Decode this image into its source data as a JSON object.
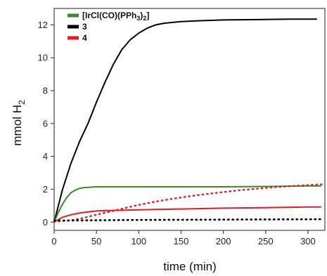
{
  "chart_data": {
    "type": "line",
    "title": "",
    "xlabel": "time (min)",
    "ylabel": "mmol H",
    "ylabel_sub": "2",
    "xlim": [
      0,
      320
    ],
    "ylim": [
      -0.5,
      13
    ],
    "xticks": [
      0,
      50,
      100,
      150,
      200,
      250,
      300
    ],
    "yticks": [
      0,
      2,
      4,
      6,
      8,
      10,
      12
    ],
    "grid": false,
    "legend_position": "top-left",
    "legend": [
      {
        "label_main": "[IrCl(CO)(PPh",
        "label_sub": "3",
        "label_end": ")",
        "label_sub2": "2",
        "label_close": "]",
        "color": "#3a8a2a"
      },
      {
        "label_main": "3",
        "color": "#000000"
      },
      {
        "label_main": "4",
        "color": "#e8191c"
      }
    ],
    "series": [
      {
        "color": "#000000",
        "style": "solid",
        "x": [
          0,
          10,
          20,
          30,
          40,
          50,
          60,
          70,
          80,
          90,
          95,
          100,
          110,
          120,
          130,
          140,
          150,
          170,
          200,
          250,
          280,
          310
        ],
        "y": [
          0,
          2.0,
          3.6,
          4.9,
          6.0,
          7.3,
          8.5,
          9.6,
          10.5,
          11.1,
          11.3,
          11.5,
          11.8,
          12.0,
          12.1,
          12.15,
          12.2,
          12.25,
          12.3,
          12.33,
          12.35,
          12.35
        ]
      },
      {
        "color": "#3a8a2a",
        "style": "solid",
        "x": [
          0,
          5,
          10,
          15,
          20,
          25,
          30,
          35,
          40,
          50,
          60,
          80,
          100,
          150,
          200,
          250,
          300,
          315
        ],
        "y": [
          0,
          0.6,
          1.1,
          1.5,
          1.8,
          1.95,
          2.05,
          2.1,
          2.12,
          2.15,
          2.15,
          2.15,
          2.15,
          2.15,
          2.15,
          2.17,
          2.2,
          2.2
        ]
      },
      {
        "color": "#e8191c",
        "style": "solid",
        "x": [
          0,
          10,
          20,
          30,
          40,
          50,
          60,
          80,
          100,
          150,
          200,
          250,
          300,
          315
        ],
        "y": [
          0,
          0.3,
          0.45,
          0.55,
          0.62,
          0.68,
          0.7,
          0.72,
          0.75,
          0.8,
          0.85,
          0.88,
          0.92,
          0.92
        ]
      },
      {
        "color": "#e8191c",
        "style": "dotted",
        "x": [
          0,
          15,
          30,
          50,
          75,
          100,
          125,
          150,
          175,
          200,
          225,
          250,
          275,
          300,
          318
        ],
        "y": [
          0.02,
          0.08,
          0.2,
          0.45,
          0.75,
          1.05,
          1.3,
          1.5,
          1.68,
          1.83,
          1.97,
          2.08,
          2.18,
          2.25,
          2.3
        ]
      },
      {
        "color": "#3a8a2a",
        "style": "dotted",
        "x": [
          0,
          50,
          100,
          150,
          200,
          250,
          300,
          318
        ],
        "y": [
          0.08,
          0.1,
          0.12,
          0.13,
          0.14,
          0.15,
          0.16,
          0.17
        ]
      },
      {
        "color": "#000000",
        "style": "dotted",
        "x": [
          0,
          50,
          100,
          150,
          200,
          250,
          300,
          318
        ],
        "y": [
          0.1,
          0.12,
          0.14,
          0.15,
          0.16,
          0.17,
          0.18,
          0.18
        ]
      }
    ]
  }
}
